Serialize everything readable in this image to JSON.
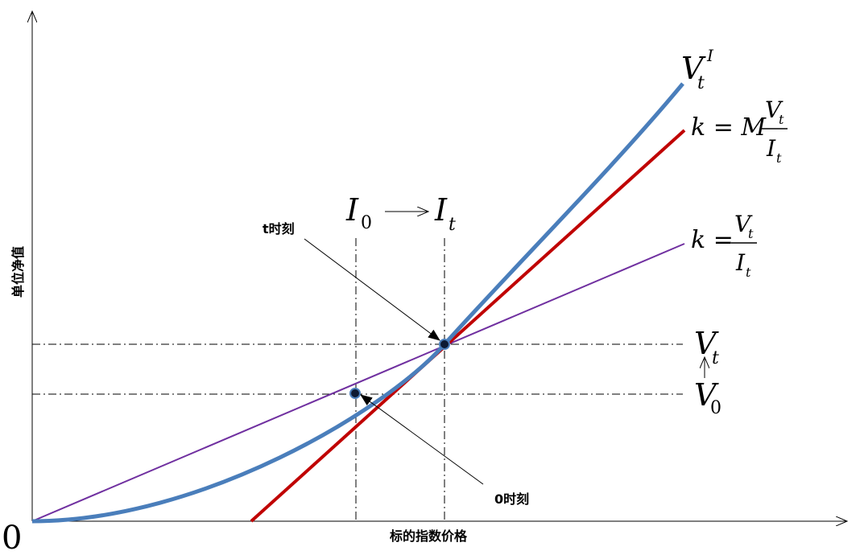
{
  "axes": {
    "x_label": "标的指数价格",
    "y_label": "单位净值",
    "origin_label": "0"
  },
  "curves": {
    "option_value": {
      "symbol": "V",
      "sub": "t",
      "sup": "I",
      "color": "#4a7ebb"
    },
    "leveraged_line": {
      "lhs": "k = M",
      "num_symbol": "V",
      "num_sub": "t",
      "den_symbol": "I",
      "den_sub": "t",
      "color": "#c00000"
    },
    "unit_line": {
      "lhs": "k =",
      "num_symbol": "V",
      "num_sub": "t",
      "den_symbol": "I",
      "den_sub": "t",
      "color": "#7030a0"
    }
  },
  "levels": {
    "v0": {
      "symbol": "V",
      "sub": "0"
    },
    "vt": {
      "symbol": "V",
      "sub": "t"
    },
    "i0": {
      "symbol": "I",
      "sub": "0"
    },
    "it": {
      "symbol": "I",
      "sub": "t"
    }
  },
  "annotations": {
    "time_t": "t时刻",
    "time_0": "0时刻"
  },
  "guide_color": "#000000"
}
